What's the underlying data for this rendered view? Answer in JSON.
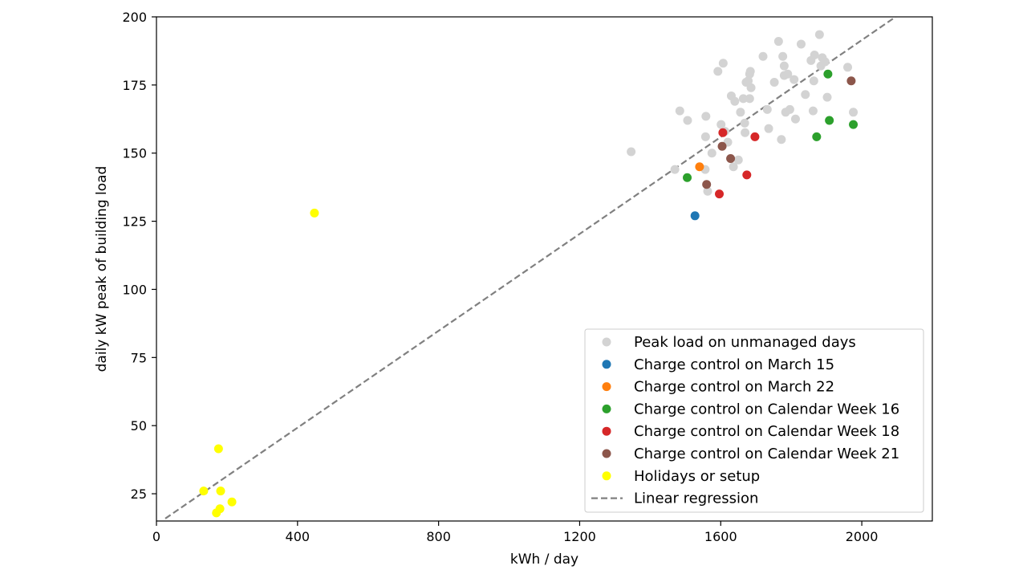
{
  "chart_data": {
    "type": "scatter",
    "title": "",
    "xlabel": "kWh / day",
    "ylabel": "daily kW peak of building load",
    "xlim": [
      0,
      2200
    ],
    "ylim": [
      15,
      200
    ],
    "xticks": [
      0,
      400,
      800,
      1200,
      1600,
      2000
    ],
    "yticks": [
      25,
      50,
      75,
      100,
      125,
      150,
      175,
      200
    ],
    "grid": false,
    "legend_position": "bottom-right",
    "series": [
      {
        "name": "Peak load on unmanaged days",
        "color": "#d3d3d3",
        "points": [
          [
            1346,
            150.5
          ],
          [
            1470,
            144
          ],
          [
            1484,
            165.5
          ],
          [
            1506,
            162
          ],
          [
            1556,
            144
          ],
          [
            1557,
            156
          ],
          [
            1558,
            163.5
          ],
          [
            1563,
            136
          ],
          [
            1575,
            150
          ],
          [
            1592,
            180
          ],
          [
            1601,
            160.5
          ],
          [
            1607,
            183
          ],
          [
            1612,
            158
          ],
          [
            1620,
            154
          ],
          [
            1630,
            171
          ],
          [
            1636,
            145
          ],
          [
            1640,
            169
          ],
          [
            1650,
            147.5
          ],
          [
            1656,
            165
          ],
          [
            1664,
            170
          ],
          [
            1668,
            161
          ],
          [
            1669,
            157.5
          ],
          [
            1672,
            176
          ],
          [
            1678,
            176.5
          ],
          [
            1682,
            170
          ],
          [
            1682,
            179
          ],
          [
            1684,
            180
          ],
          [
            1686,
            174
          ],
          [
            1720,
            185.5
          ],
          [
            1732,
            166
          ],
          [
            1736,
            159
          ],
          [
            1752,
            176
          ],
          [
            1764,
            191
          ],
          [
            1772,
            155
          ],
          [
            1776,
            185.5
          ],
          [
            1780,
            178.5
          ],
          [
            1780,
            182
          ],
          [
            1784,
            165
          ],
          [
            1790,
            179
          ],
          [
            1796,
            166
          ],
          [
            1808,
            177
          ],
          [
            1812,
            162.5
          ],
          [
            1828,
            190
          ],
          [
            1840,
            171.5
          ],
          [
            1856,
            184
          ],
          [
            1862,
            165.5
          ],
          [
            1864,
            176.5
          ],
          [
            1866,
            186
          ],
          [
            1880,
            193.5
          ],
          [
            1884,
            182
          ],
          [
            1888,
            185
          ],
          [
            1896,
            183.5
          ],
          [
            1902,
            170.5
          ],
          [
            1960,
            181.5
          ],
          [
            1976,
            165
          ]
        ]
      },
      {
        "name": "Charge control on March 15",
        "color": "#1f77b4",
        "points": [
          [
            1527,
            127
          ]
        ]
      },
      {
        "name": "Charge control on March 22",
        "color": "#ff7f0e",
        "points": [
          [
            1540,
            145
          ]
        ]
      },
      {
        "name": "Charge control on Calendar Week 16",
        "color": "#2ca02c",
        "points": [
          [
            1505,
            141
          ],
          [
            1872,
            156
          ],
          [
            1904,
            179
          ],
          [
            1908,
            162
          ],
          [
            1976,
            160.5
          ]
        ]
      },
      {
        "name": "Charge control on Calendar Week 18",
        "color": "#d62728",
        "points": [
          [
            1596,
            135
          ],
          [
            1606,
            157.5
          ],
          [
            1674,
            142
          ],
          [
            1697,
            156
          ]
        ]
      },
      {
        "name": "Charge control on Calendar Week 21",
        "color": "#8c564b",
        "points": [
          [
            1560,
            138.5
          ],
          [
            1604,
            152.5
          ],
          [
            1628,
            148
          ],
          [
            1970,
            176.5
          ]
        ]
      },
      {
        "name": "Holidays or setup",
        "color": "#ffff00",
        "points": [
          [
            134,
            26
          ],
          [
            170,
            18
          ],
          [
            176,
            41.5
          ],
          [
            180,
            19.5
          ],
          [
            182,
            26
          ],
          [
            214,
            22
          ],
          [
            448,
            128
          ]
        ]
      }
    ],
    "regression": {
      "name": "Linear regression",
      "color": "#808080",
      "line": [
        [
          25,
          15.9
        ],
        [
          2096,
          200
        ]
      ]
    }
  }
}
